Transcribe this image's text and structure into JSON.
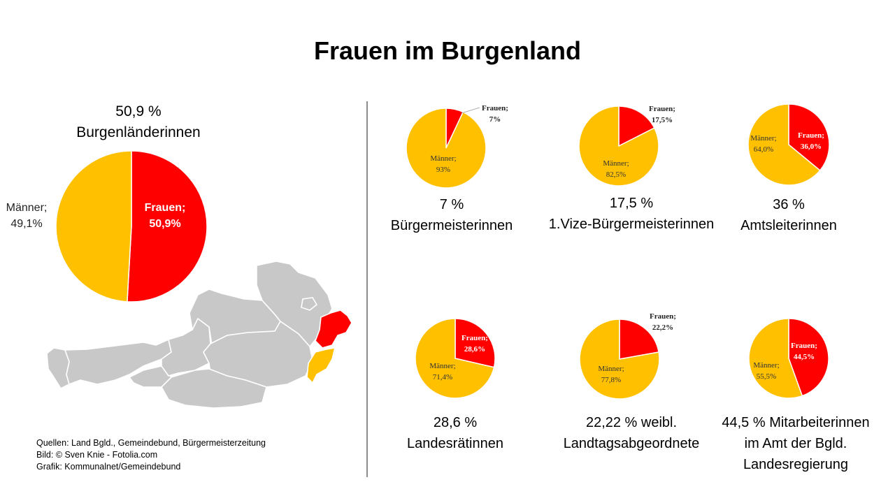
{
  "title": "Frauen im Burgenland",
  "colors": {
    "frauen": "#ff0000",
    "maenner": "#ffc000",
    "map_grey": "#c8c8c8",
    "divider": "#8c8c8c"
  },
  "main_caption": {
    "line1": "50,9 %",
    "line2": "Burgenländerinnen"
  },
  "chart_data": [
    {
      "type": "pie",
      "id": "main",
      "slices": [
        {
          "label": "Frauen",
          "value": 50.9,
          "value_text": "50,9%"
        },
        {
          "label": "Männer",
          "value": 49.1,
          "value_text": "49,1%"
        }
      ]
    },
    {
      "type": "pie",
      "id": "buergermeisterinnen",
      "slices": [
        {
          "label": "Frauen",
          "value": 7,
          "value_text": "7%"
        },
        {
          "label": "Männer",
          "value": 93,
          "value_text": "93%"
        }
      ]
    },
    {
      "type": "pie",
      "id": "vize",
      "slices": [
        {
          "label": "Frauen",
          "value": 17.5,
          "value_text": "17,5%"
        },
        {
          "label": "Männer",
          "value": 82.5,
          "value_text": "82,5%"
        }
      ]
    },
    {
      "type": "pie",
      "id": "amtsleiterinnen",
      "slices": [
        {
          "label": "Frauen",
          "value": 36.0,
          "value_text": "36,0%"
        },
        {
          "label": "Männer",
          "value": 64.0,
          "value_text": "64,0%"
        }
      ]
    },
    {
      "type": "pie",
      "id": "landesraetinnen",
      "slices": [
        {
          "label": "Frauen",
          "value": 28.6,
          "value_text": "28,6%"
        },
        {
          "label": "Männer",
          "value": 71.4,
          "value_text": "71,4%"
        }
      ]
    },
    {
      "type": "pie",
      "id": "landtag",
      "slices": [
        {
          "label": "Frauen",
          "value": 22.2,
          "value_text": "22,2%"
        },
        {
          "label": "Männer",
          "value": 77.8,
          "value_text": "77,8%"
        }
      ]
    },
    {
      "type": "pie",
      "id": "mitarbeiterinnen",
      "slices": [
        {
          "label": "Frauen",
          "value": 44.5,
          "value_text": "44,5%"
        },
        {
          "label": "Männer",
          "value": 55.5,
          "value_text": "55,5%"
        }
      ]
    }
  ],
  "captions": [
    {
      "lines": [
        "7 %",
        "Bürgermeisterinnen"
      ]
    },
    {
      "lines": [
        "17,5 %",
        "1.Vize-Bürgermeisterinnen"
      ]
    },
    {
      "lines": [
        "36 %",
        "Amtsleiterinnen"
      ]
    },
    {
      "lines": [
        "28,6 %",
        "Landesrätinnen"
      ]
    },
    {
      "lines": [
        "22,22 % weibl.",
        "Landtagsabgeordnete"
      ]
    },
    {
      "lines": [
        "44,5 % Mitarbeiterinnen",
        "im Amt der Bgld.",
        "Landesregierung"
      ]
    }
  ],
  "sources": [
    "Quellen: Land Bgld., Gemeindebund, Bürgermeisterzeitung",
    "Bild: © Sven Knie - Fotolia.com",
    "Grafik: Kommunalnet/Gemeindebund"
  ]
}
